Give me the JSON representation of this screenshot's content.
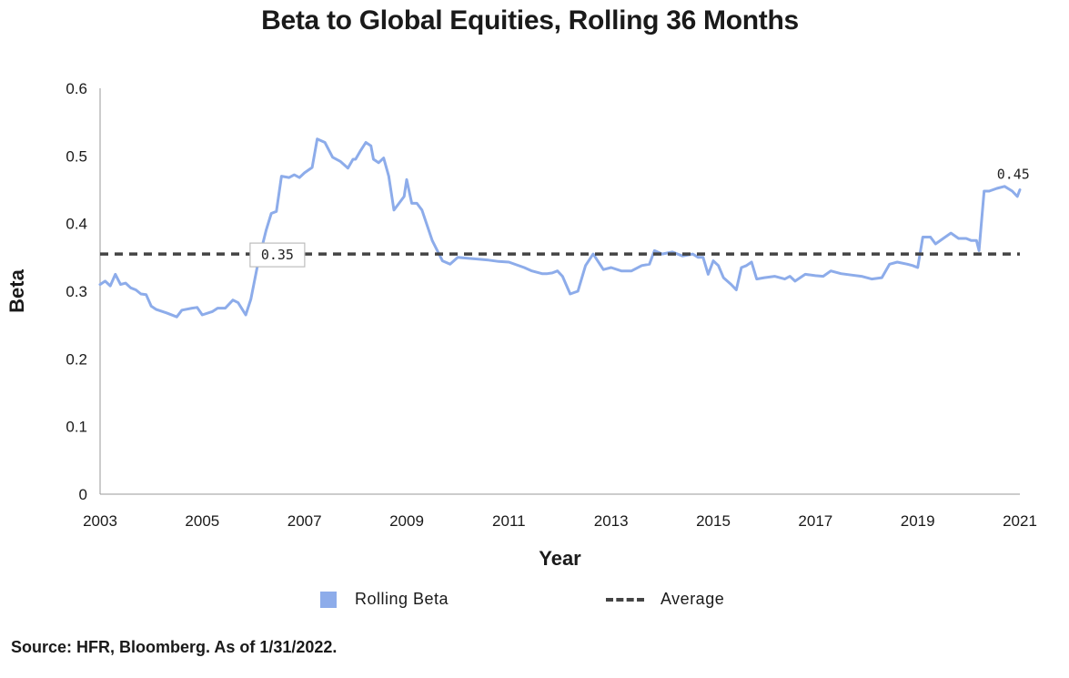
{
  "chart_data": {
    "type": "line",
    "title": "Beta to Global Equities, Rolling 36 Months",
    "xlabel": "Year",
    "ylabel": "Beta",
    "xlim": [
      2003,
      2021
    ],
    "ylim": [
      0,
      0.6
    ],
    "x_ticks": [
      "2003",
      "2005",
      "2007",
      "2009",
      "2011",
      "2013",
      "2015",
      "2017",
      "2019",
      "2021"
    ],
    "y_ticks": [
      "0",
      "0.1",
      "0.2",
      "0.3",
      "0.4",
      "0.5",
      "0.6"
    ],
    "grid": false,
    "legend_position": "bottom",
    "series": [
      {
        "name": "Rolling Beta",
        "color": "#8dacea",
        "x": [
          2003.0,
          2003.1,
          2003.2,
          2003.3,
          2003.4,
          2003.5,
          2003.6,
          2003.7,
          2003.8,
          2003.9,
          2004.0,
          2004.1,
          2004.3,
          2004.5,
          2004.6,
          2004.8,
          2004.9,
          2005.0,
          2005.2,
          2005.3,
          2005.45,
          2005.6,
          2005.7,
          2005.85,
          2005.95,
          2006.1,
          2006.25,
          2006.35,
          2006.45,
          2006.55,
          2006.7,
          2006.8,
          2006.9,
          2007.0,
          2007.15,
          2007.25,
          2007.4,
          2007.55,
          2007.7,
          2007.85,
          2007.95,
          2008.0,
          2008.1,
          2008.2,
          2008.3,
          2008.35,
          2008.45,
          2008.55,
          2008.65,
          2008.75,
          2008.85,
          2008.95,
          2009.0,
          2009.1,
          2009.2,
          2009.3,
          2009.5,
          2009.7,
          2009.85,
          2010.0,
          2010.3,
          2010.6,
          2010.8,
          2011.0,
          2011.3,
          2011.45,
          2011.55,
          2011.65,
          2011.75,
          2011.85,
          2011.95,
          2012.05,
          2012.2,
          2012.35,
          2012.5,
          2012.65,
          2012.85,
          2013.0,
          2013.2,
          2013.4,
          2013.6,
          2013.75,
          2013.85,
          2014.0,
          2014.2,
          2014.4,
          2014.6,
          2014.7,
          2014.8,
          2014.9,
          2015.0,
          2015.1,
          2015.2,
          2015.35,
          2015.45,
          2015.55,
          2015.65,
          2015.75,
          2015.85,
          2016.0,
          2016.2,
          2016.4,
          2016.5,
          2016.6,
          2016.8,
          2017.0,
          2017.15,
          2017.3,
          2017.5,
          2017.7,
          2017.9,
          2018.1,
          2018.3,
          2018.45,
          2018.6,
          2018.8,
          2018.9,
          2019.0,
          2019.1,
          2019.25,
          2019.35,
          2019.5,
          2019.65,
          2019.8,
          2019.95,
          2020.05,
          2020.15,
          2020.2,
          2020.3,
          2020.4,
          2020.55,
          2020.7,
          2020.85,
          2020.95,
          2021.0
        ],
        "values": [
          0.31,
          0.315,
          0.308,
          0.325,
          0.31,
          0.312,
          0.305,
          0.302,
          0.296,
          0.295,
          0.278,
          0.273,
          0.268,
          0.262,
          0.272,
          0.275,
          0.276,
          0.265,
          0.27,
          0.275,
          0.275,
          0.287,
          0.283,
          0.265,
          0.288,
          0.345,
          0.39,
          0.415,
          0.418,
          0.47,
          0.468,
          0.472,
          0.468,
          0.475,
          0.483,
          0.525,
          0.52,
          0.498,
          0.492,
          0.482,
          0.495,
          0.495,
          0.508,
          0.52,
          0.515,
          0.495,
          0.49,
          0.497,
          0.47,
          0.42,
          0.43,
          0.44,
          0.465,
          0.43,
          0.43,
          0.42,
          0.375,
          0.345,
          0.34,
          0.35,
          0.348,
          0.346,
          0.344,
          0.343,
          0.335,
          0.33,
          0.328,
          0.326,
          0.326,
          0.327,
          0.33,
          0.322,
          0.296,
          0.3,
          0.338,
          0.355,
          0.332,
          0.335,
          0.33,
          0.33,
          0.338,
          0.34,
          0.36,
          0.355,
          0.358,
          0.352,
          0.355,
          0.35,
          0.35,
          0.325,
          0.345,
          0.338,
          0.32,
          0.31,
          0.302,
          0.335,
          0.338,
          0.343,
          0.318,
          0.32,
          0.322,
          0.318,
          0.322,
          0.315,
          0.325,
          0.323,
          0.322,
          0.33,
          0.326,
          0.324,
          0.322,
          0.318,
          0.32,
          0.34,
          0.343,
          0.34,
          0.338,
          0.335,
          0.38,
          0.38,
          0.37,
          0.378,
          0.386,
          0.378,
          0.378,
          0.375,
          0.375,
          0.36,
          0.448,
          0.448,
          0.452,
          0.455,
          0.448,
          0.44,
          0.45
        ]
      },
      {
        "name": "Average",
        "color": "#444444",
        "style": "dashed",
        "x": [
          2003,
          2021
        ],
        "values": [
          0.355,
          0.355
        ]
      }
    ],
    "annotations": [
      {
        "text": "0.35",
        "x": 2005.9,
        "y": 0.355,
        "boxed": true
      },
      {
        "text": "0.45",
        "x": 2020.55,
        "y": 0.45,
        "boxed": false
      }
    ]
  },
  "legend": {
    "items": [
      {
        "label": "Rolling Beta"
      },
      {
        "label": "Average"
      }
    ]
  },
  "source_note": "Source: HFR, Bloomberg. As of 1/31/2022."
}
